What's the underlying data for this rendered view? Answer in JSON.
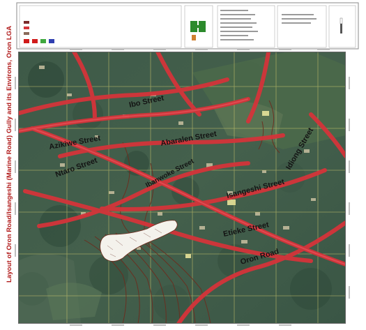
{
  "map": {
    "title": "Layout of Oron Road/Isangeshi (Marine Road) Gully and its Environs, Oron LGA",
    "streets": [
      "Ibo Street",
      "Azikiwe Street",
      "Abaralen Street",
      "Ibanwoke Street",
      "Ntaro Street",
      "Idiong Street",
      "Isangeshi Street",
      "Etieke Street",
      "Oron Road"
    ],
    "legend": {
      "heading": "Legend",
      "items": [
        "Gully",
        "roads",
        "Gully Map",
        "Ridge",
        "Ridge 1",
        "Ridge 2",
        "Ridge 3"
      ]
    },
    "colors": {
      "road": "#d4343a",
      "contour": "#6e2a1c",
      "gully": "#ffffff",
      "title": "#b01818",
      "grid": "#d8d070"
    }
  }
}
